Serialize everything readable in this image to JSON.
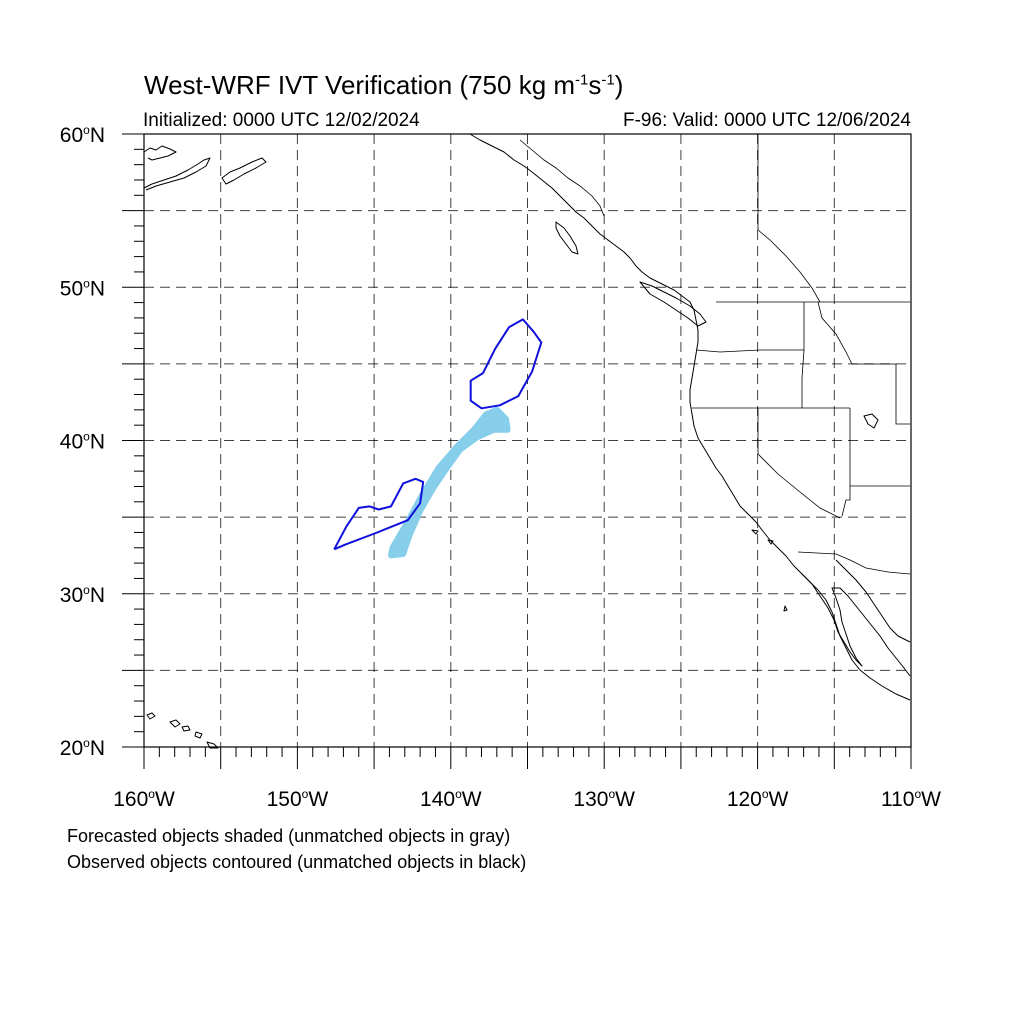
{
  "title": {
    "main": "West-WRF IVT Verification (750 kg m",
    "sup1": "-1",
    "mid": "s",
    "sup2": "-1",
    "end": ")"
  },
  "subtitle_left": "Initialized: 0000 UTC 12/02/2024",
  "subtitle_right": "F-96: Valid: 0000 UTC 12/06/2024",
  "lat_labels": [
    {
      "deg": "60",
      "hemi": "N",
      "lat": 60
    },
    {
      "deg": "50",
      "hemi": "N",
      "lat": 50
    },
    {
      "deg": "40",
      "hemi": "N",
      "lat": 40
    },
    {
      "deg": "30",
      "hemi": "N",
      "lat": 30
    },
    {
      "deg": "20",
      "hemi": "N",
      "lat": 20
    }
  ],
  "lon_labels": [
    {
      "deg": "160",
      "hemi": "W",
      "lon": -160
    },
    {
      "deg": "150",
      "hemi": "W",
      "lon": -150
    },
    {
      "deg": "140",
      "hemi": "W",
      "lon": -140
    },
    {
      "deg": "130",
      "hemi": "W",
      "lon": -130
    },
    {
      "deg": "120",
      "hemi": "W",
      "lon": -120
    },
    {
      "deg": "110",
      "hemi": "W",
      "lon": -110
    }
  ],
  "map": {
    "lon_range": [
      -160,
      -110
    ],
    "lat_range": [
      20,
      60
    ],
    "grid_lons": [
      -155,
      -150,
      -145,
      -140,
      -135,
      -130,
      -125,
      -120,
      -115
    ],
    "grid_lats": [
      25,
      30,
      35,
      40,
      45,
      50,
      55
    ],
    "forecast_color": "#87ceeb",
    "observed_color": "#1010dd"
  },
  "forecast_object": [
    [
      -143.8,
      33.0
    ],
    [
      -142.8,
      34.7
    ],
    [
      -141.9,
      36.4
    ],
    [
      -140.8,
      38.2
    ],
    [
      -139.6,
      39.6
    ],
    [
      -138.5,
      40.7
    ],
    [
      -137.7,
      41.7
    ],
    [
      -137.0,
      42.0
    ],
    [
      -136.4,
      41.4
    ],
    [
      -136.3,
      40.7
    ],
    [
      -137.2,
      40.7
    ],
    [
      -138.3,
      40.2
    ],
    [
      -139.4,
      39.4
    ],
    [
      -140.4,
      38.0
    ],
    [
      -141.2,
      36.8
    ],
    [
      -142.0,
      35.4
    ],
    [
      -142.7,
      33.8
    ],
    [
      -143.1,
      32.6
    ],
    [
      -143.9,
      32.5
    ]
  ],
  "observed_objects": [
    [
      [
        -134.6,
        47.1
      ],
      [
        -134.1,
        46.4
      ],
      [
        -134.7,
        44.5
      ],
      [
        -135.6,
        42.9
      ],
      [
        -136.8,
        42.3
      ],
      [
        -138.0,
        42.1
      ],
      [
        -138.7,
        42.6
      ],
      [
        -138.7,
        43.9
      ],
      [
        -137.9,
        44.4
      ],
      [
        -137.1,
        46.0
      ],
      [
        -136.2,
        47.4
      ],
      [
        -135.3,
        47.9
      ],
      [
        -134.6,
        47.1
      ]
    ],
    [
      [
        -147.6,
        32.9
      ],
      [
        -146.9,
        33.2
      ],
      [
        -144.8,
        34.0
      ],
      [
        -142.8,
        34.8
      ],
      [
        -142.0,
        35.9
      ],
      [
        -141.8,
        37.3
      ],
      [
        -142.3,
        37.5
      ],
      [
        -143.1,
        37.2
      ],
      [
        -143.9,
        35.7
      ],
      [
        -144.7,
        35.5
      ],
      [
        -145.3,
        35.7
      ],
      [
        -146.0,
        35.6
      ],
      [
        -146.8,
        34.4
      ],
      [
        -147.6,
        32.9
      ]
    ]
  ],
  "footer": {
    "line1": "Forecasted objects shaded (unmatched objects in gray)",
    "line2": "Observed objects contoured (unmatched objects in black)"
  }
}
